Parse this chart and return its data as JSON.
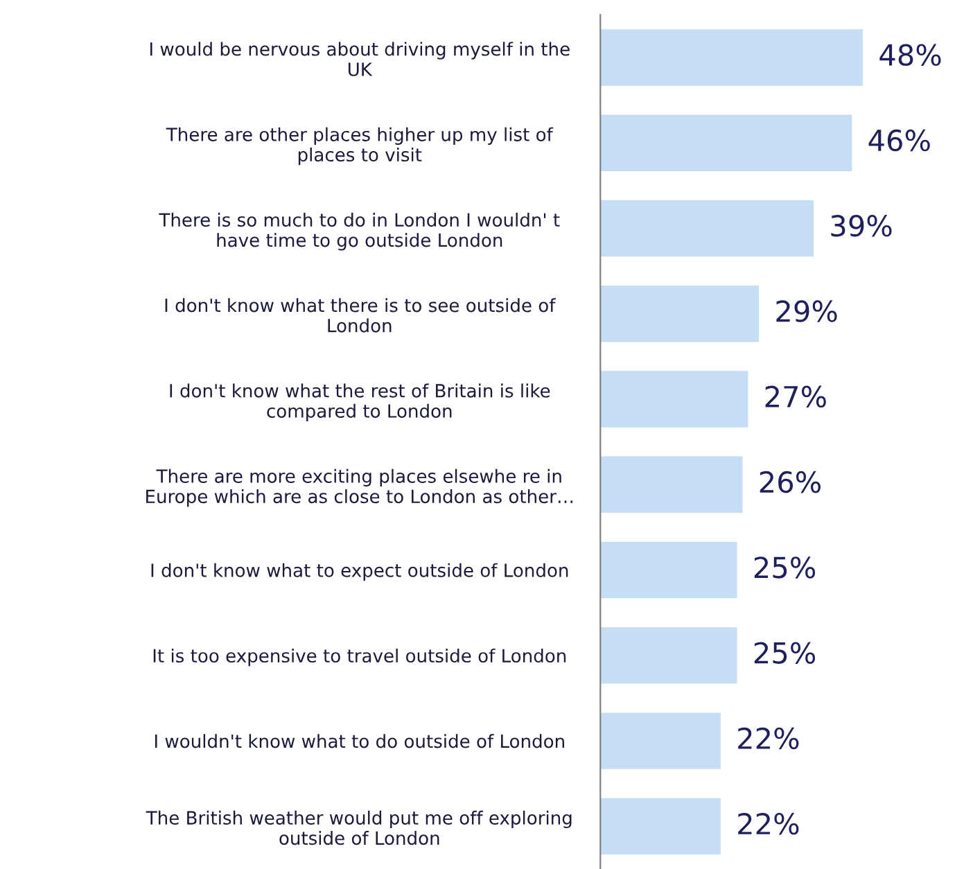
{
  "chart_data": {
    "type": "bar",
    "orientation": "horizontal",
    "categories": [
      "I would be nervous about driving myself in the\nUK",
      "There are other places higher up my list of\nplaces to visit",
      "There is so much to do in London I wouldn' t\nhave time to go outside London",
      "I don't know what there is to see outside of\nLondon",
      "I don't know what the rest of Britain is like\ncompared to London",
      "There are more exciting places elsewhe re in\nEurope which are as close to London as other…",
      "I don't know what to expect outside of London",
      "It is too expensive to travel outside of London",
      "I wouldn't know what to do outside of London",
      "The British weather would put me off exploring\noutside of London"
    ],
    "values": [
      48,
      46,
      39,
      29,
      27,
      26,
      25,
      25,
      22,
      22
    ],
    "value_labels": [
      "48%",
      "46%",
      "39%",
      "29%",
      "27%",
      "26%",
      "25%",
      "25%",
      "22%",
      "22%"
    ],
    "color": "#c6ddf6"
  }
}
